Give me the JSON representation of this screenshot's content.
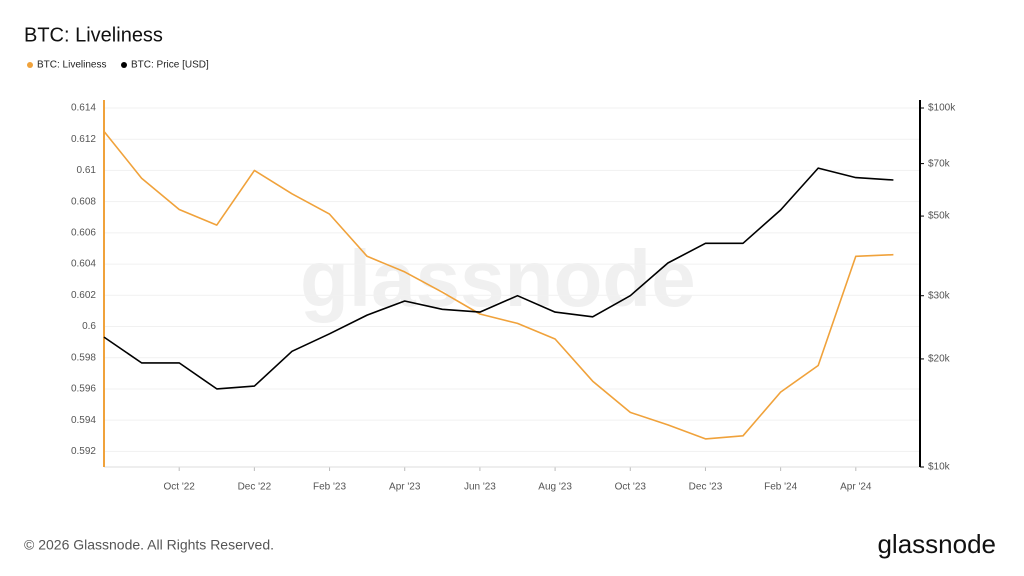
{
  "chart_data": {
    "type": "line",
    "title": "BTC: Liveliness",
    "watermark": "glassnode",
    "copyright": "© 2026 Glassnode. All Rights Reserved.",
    "brand": "glassnode",
    "x": [
      "2022-08",
      "2022-09",
      "2022-10",
      "2022-11",
      "2022-12",
      "2023-01",
      "2023-02",
      "2023-03",
      "2023-04",
      "2023-05",
      "2023-06",
      "2023-07",
      "2023-08",
      "2023-09",
      "2023-10",
      "2023-11",
      "2023-12",
      "2024-01",
      "2024-02",
      "2024-03",
      "2024-04",
      "2024-05"
    ],
    "xlim": [
      "2022-08",
      "2024-06"
    ],
    "xticks": [
      {
        "value": "2022-10",
        "label": "Oct '22"
      },
      {
        "value": "2022-12",
        "label": "Dec '22"
      },
      {
        "value": "2023-02",
        "label": "Feb '23"
      },
      {
        "value": "2023-04",
        "label": "Apr '23"
      },
      {
        "value": "2023-06",
        "label": "Jun '23"
      },
      {
        "value": "2023-08",
        "label": "Aug '23"
      },
      {
        "value": "2023-10",
        "label": "Oct '23"
      },
      {
        "value": "2023-12",
        "label": "Dec '23"
      },
      {
        "value": "2024-02",
        "label": "Feb '24"
      },
      {
        "value": "2024-04",
        "label": "Apr '24"
      }
    ],
    "series": [
      {
        "name": "BTC: Liveliness",
        "color": "#f0a23b",
        "values": [
          0.6125,
          0.6095,
          0.6075,
          0.6065,
          0.61,
          0.6085,
          0.6072,
          0.6045,
          0.6035,
          0.6022,
          0.6008,
          0.6002,
          0.5992,
          0.5965,
          0.5945,
          0.5937,
          0.5928,
          0.593,
          0.5958,
          0.5975,
          0.6045,
          0.6046
        ]
      },
      {
        "name": "BTC: Price [USD]",
        "color": "#000000",
        "axis": "y2",
        "values": [
          23000,
          19500,
          19500,
          16500,
          16800,
          21000,
          23500,
          26500,
          29000,
          27500,
          27000,
          30000,
          27000,
          26200,
          30000,
          37000,
          42000,
          42000,
          52000,
          68000,
          64000,
          63000
        ]
      }
    ],
    "ylim": [
      0.591,
      0.614
    ],
    "yticks": [
      0.592,
      0.594,
      0.596,
      0.598,
      0.6,
      0.602,
      0.604,
      0.606,
      0.608,
      0.61,
      0.612,
      0.614
    ],
    "y2lim": [
      10000,
      100000
    ],
    "y2scale": "log",
    "y2ticks": [
      {
        "value": 10000,
        "label": "$10k"
      },
      {
        "value": 20000,
        "label": "$20k"
      },
      {
        "value": 30000,
        "label": "$30k"
      },
      {
        "value": 50000,
        "label": "$50k"
      },
      {
        "value": 70000,
        "label": "$70k"
      },
      {
        "value": 100000,
        "label": "$100k"
      }
    ],
    "grid": true
  }
}
